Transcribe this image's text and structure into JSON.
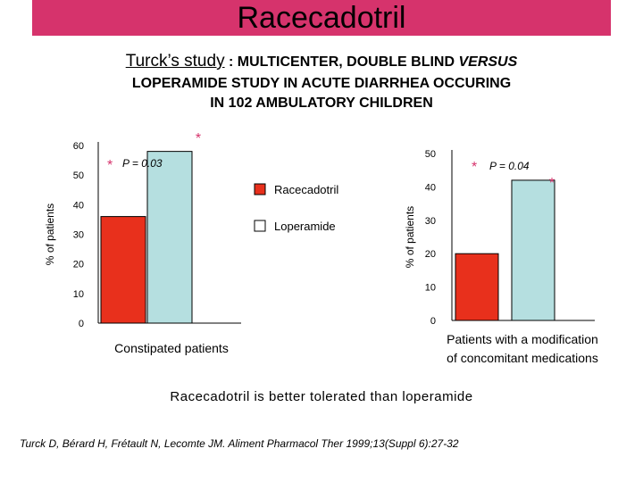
{
  "title": "Racecadotril",
  "subtitle": {
    "study": "Turck’s study",
    "sep": " : ",
    "line1_rest": "MULTICENTER, DOUBLE BLIND ",
    "versus": "VERSUS",
    "line2": "LOPERAMIDE STUDY IN ACUTE DIARRHEA OCCURING",
    "line3": "IN 102 AMBULATORY CHILDREN"
  },
  "conclusion": "Racecadotril is better tolerated than loperamide",
  "reference": "Turck D, Bérard H, Frétault N, Lecomte JM. Aliment Pharmacol Ther 1999;13(Suppl 6):27-32",
  "colors": {
    "title_bg": "#d6336c",
    "racecadotril": "#e8301c",
    "loperamide": "#b5dfe0",
    "star": "#d6336c"
  },
  "legend": [
    {
      "label": "Racecadotril",
      "color": "#e8301c"
    },
    {
      "label": "Loperamide",
      "color": "#ffffff"
    }
  ],
  "chart_data": [
    {
      "type": "bar",
      "ylabel": "% of patients",
      "ylim": [
        0,
        60
      ],
      "yticks": [
        "0",
        "10",
        "20",
        "30",
        "40",
        "50",
        "60"
      ],
      "categories": [
        "Constipated patients"
      ],
      "series": [
        {
          "name": "Racecadotril",
          "values": [
            36
          ]
        },
        {
          "name": "Loperamide",
          "values": [
            58
          ]
        }
      ],
      "significance": "P = 0.03",
      "star": "*"
    },
    {
      "type": "bar",
      "ylabel": "% of patients",
      "ylim": [
        0,
        50
      ],
      "yticks": [
        "0",
        "10",
        "20",
        "30",
        "40",
        "50"
      ],
      "categories": [
        "Patients with a modification of concomitant medications"
      ],
      "category_lines": [
        "Patients  with a modification",
        "of concomitant medications"
      ],
      "series": [
        {
          "name": "Racecadotril",
          "values": [
            20
          ]
        },
        {
          "name": "Loperamide",
          "values": [
            42
          ]
        }
      ],
      "significance": "P = 0.04",
      "star": "*"
    }
  ]
}
